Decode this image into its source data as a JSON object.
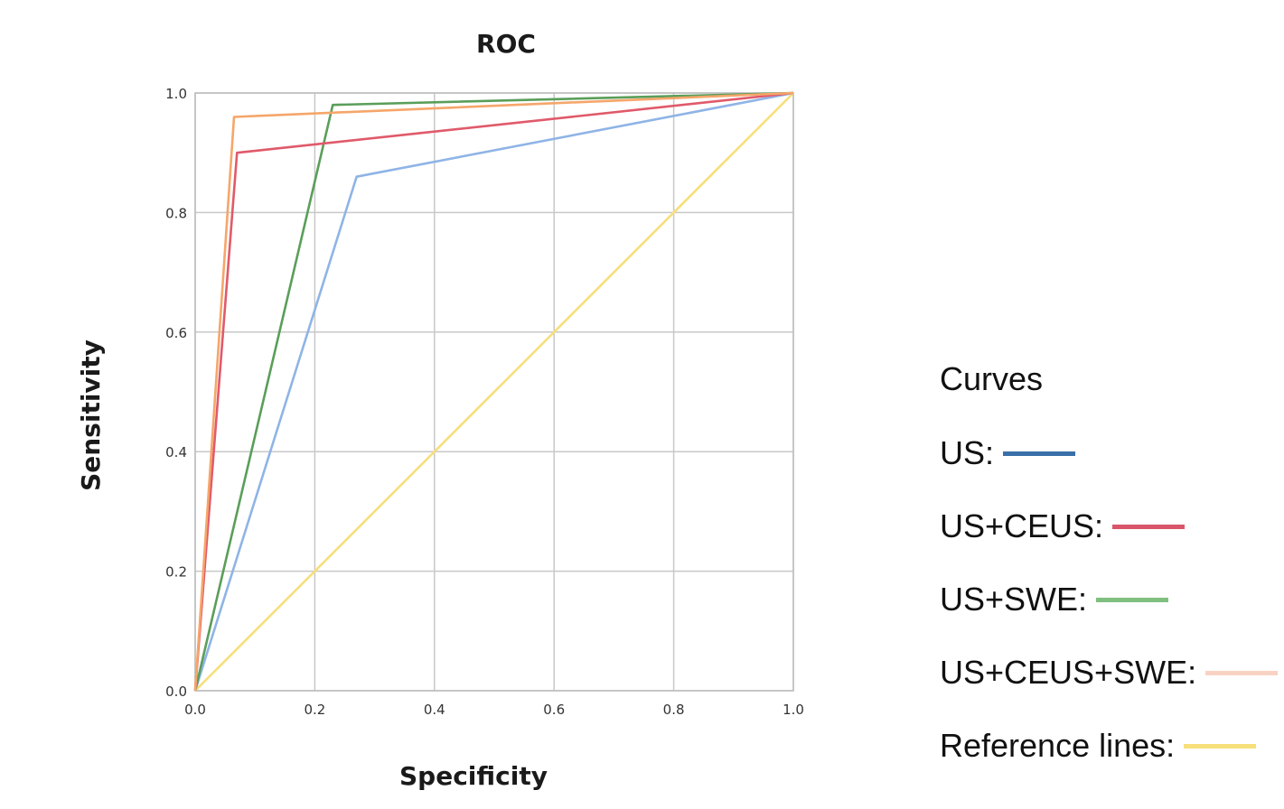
{
  "chart_data": {
    "type": "line",
    "title": "ROC",
    "xlabel": "Specificity",
    "ylabel": "Sensitivity",
    "xlim": [
      0,
      1
    ],
    "ylim": [
      0,
      1
    ],
    "xticks": [
      "0.0",
      "0.2",
      "0.4",
      "0.6",
      "0.8",
      "1.0"
    ],
    "yticks": [
      "0.0",
      "0.2",
      "0.4",
      "0.6",
      "0.8",
      "1.0"
    ],
    "grid": true,
    "legend_position": "right",
    "legend_title": "Curves",
    "series": [
      {
        "name": "US:",
        "color": "#8fb4e6",
        "swatch": "#3a6fa8",
        "x": [
          0,
          0.27,
          1
        ],
        "y": [
          0,
          0.86,
          1
        ]
      },
      {
        "name": "US+CEUS:",
        "color": "#e05a6a",
        "swatch": "#d9566a",
        "x": [
          0,
          0.07,
          1
        ],
        "y": [
          0,
          0.9,
          1
        ]
      },
      {
        "name": "US+SWE:",
        "color": "#5a9e5a",
        "swatch": "#7fbf7f",
        "x": [
          0,
          0.23,
          1
        ],
        "y": [
          0,
          0.98,
          1
        ]
      },
      {
        "name": "US+CEUS+SWE:",
        "color": "#f5a66a",
        "swatch": "#f8d3c3",
        "x": [
          0,
          0.065,
          1
        ],
        "y": [
          0,
          0.96,
          1
        ]
      },
      {
        "name": "Reference lines:",
        "color": "#f7df7a",
        "swatch": "#f7df7a",
        "x": [
          0,
          1
        ],
        "y": [
          0,
          1
        ]
      }
    ]
  }
}
